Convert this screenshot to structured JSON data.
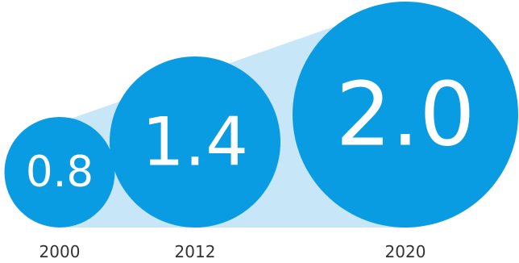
{
  "colors": {
    "bubble": "#0a9ce2",
    "cone": "#c7e7f8",
    "label": "#333333",
    "value_text": "#ffffff"
  },
  "chart_data": {
    "type": "bubble",
    "categories": [
      "2000",
      "2012",
      "2020"
    ],
    "values": [
      0.8,
      1.4,
      2.0
    ],
    "value_labels": [
      "0.8",
      "1.4",
      "2.0"
    ],
    "title": "",
    "xlabel": "",
    "ylabel": "",
    "grid": false,
    "legend": "none"
  }
}
